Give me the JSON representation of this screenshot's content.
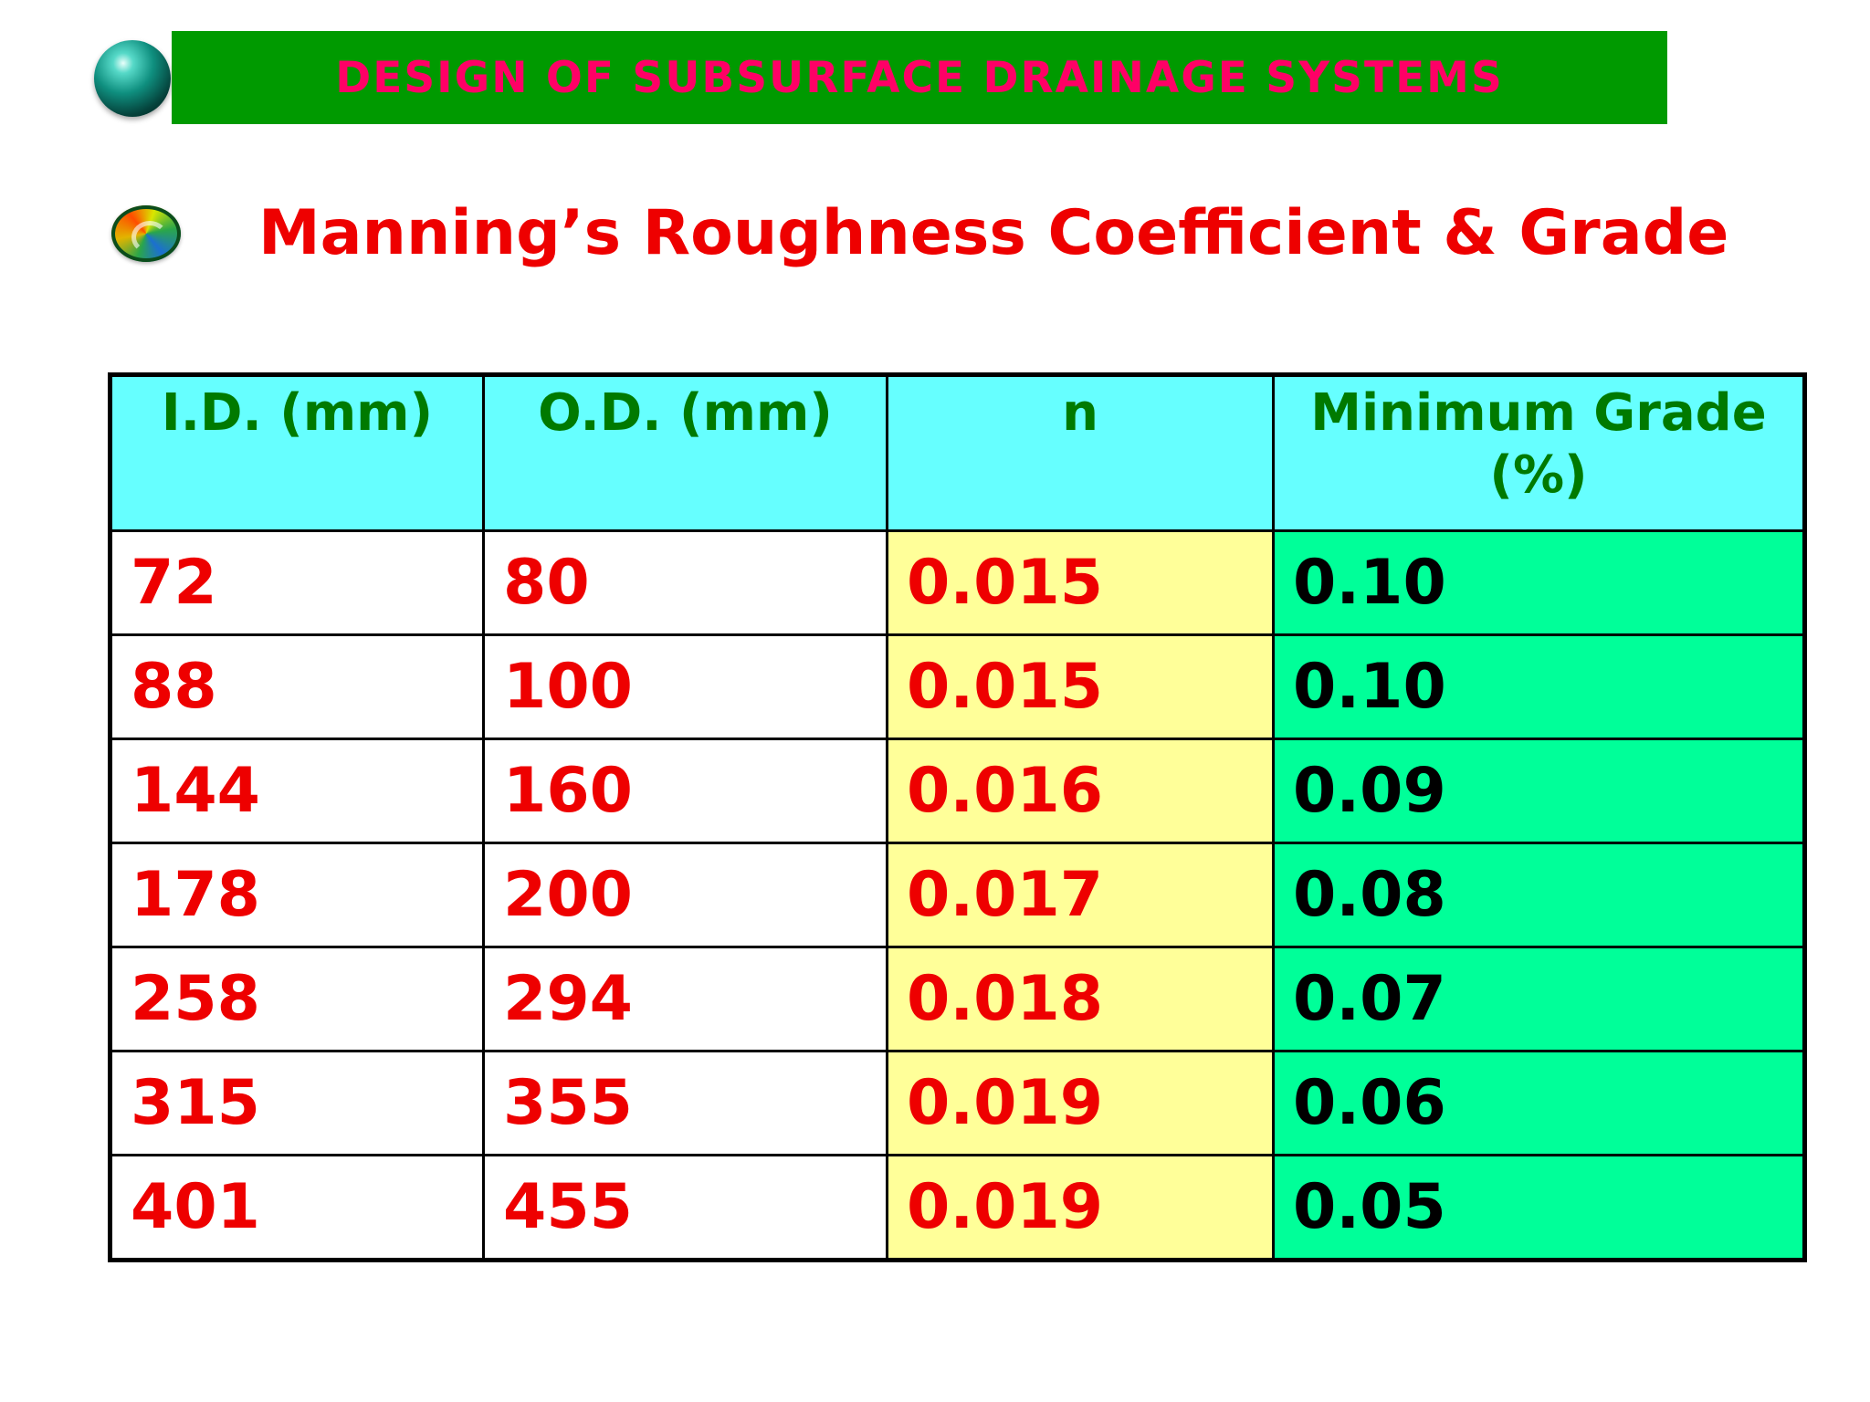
{
  "banner": {
    "title": "DESIGN OF SUBSURFACE DRAINAGE SYSTEMS"
  },
  "heading": "Manning’s Roughness Coefficient & Grade",
  "table": {
    "headers": [
      "I.D. (mm)",
      "O.D. (mm)",
      "n",
      "Minimum Grade (%)"
    ],
    "rows": [
      [
        "72",
        "80",
        "0.015",
        "0.10"
      ],
      [
        "88",
        "100",
        "0.015",
        "0.10"
      ],
      [
        "144",
        "160",
        "0.016",
        "0.09"
      ],
      [
        "178",
        "200",
        "0.017",
        "0.08"
      ],
      [
        "258",
        "294",
        "0.018",
        "0.07"
      ],
      [
        "315",
        "355",
        "0.019",
        "0.06"
      ],
      [
        "401",
        "455",
        "0.019",
        "0.05"
      ]
    ]
  },
  "colors": {
    "banner_bg": "#009a00",
    "banner_text": "#ff0066",
    "heading": "#ee0000",
    "header_bg": "#66ffff",
    "header_text": "#007a00",
    "n_column_bg": "#ffff99",
    "grade_column_bg": "#00ff99"
  },
  "icons": [
    "teal-orb-icon",
    "swirl-bullet-icon"
  ]
}
